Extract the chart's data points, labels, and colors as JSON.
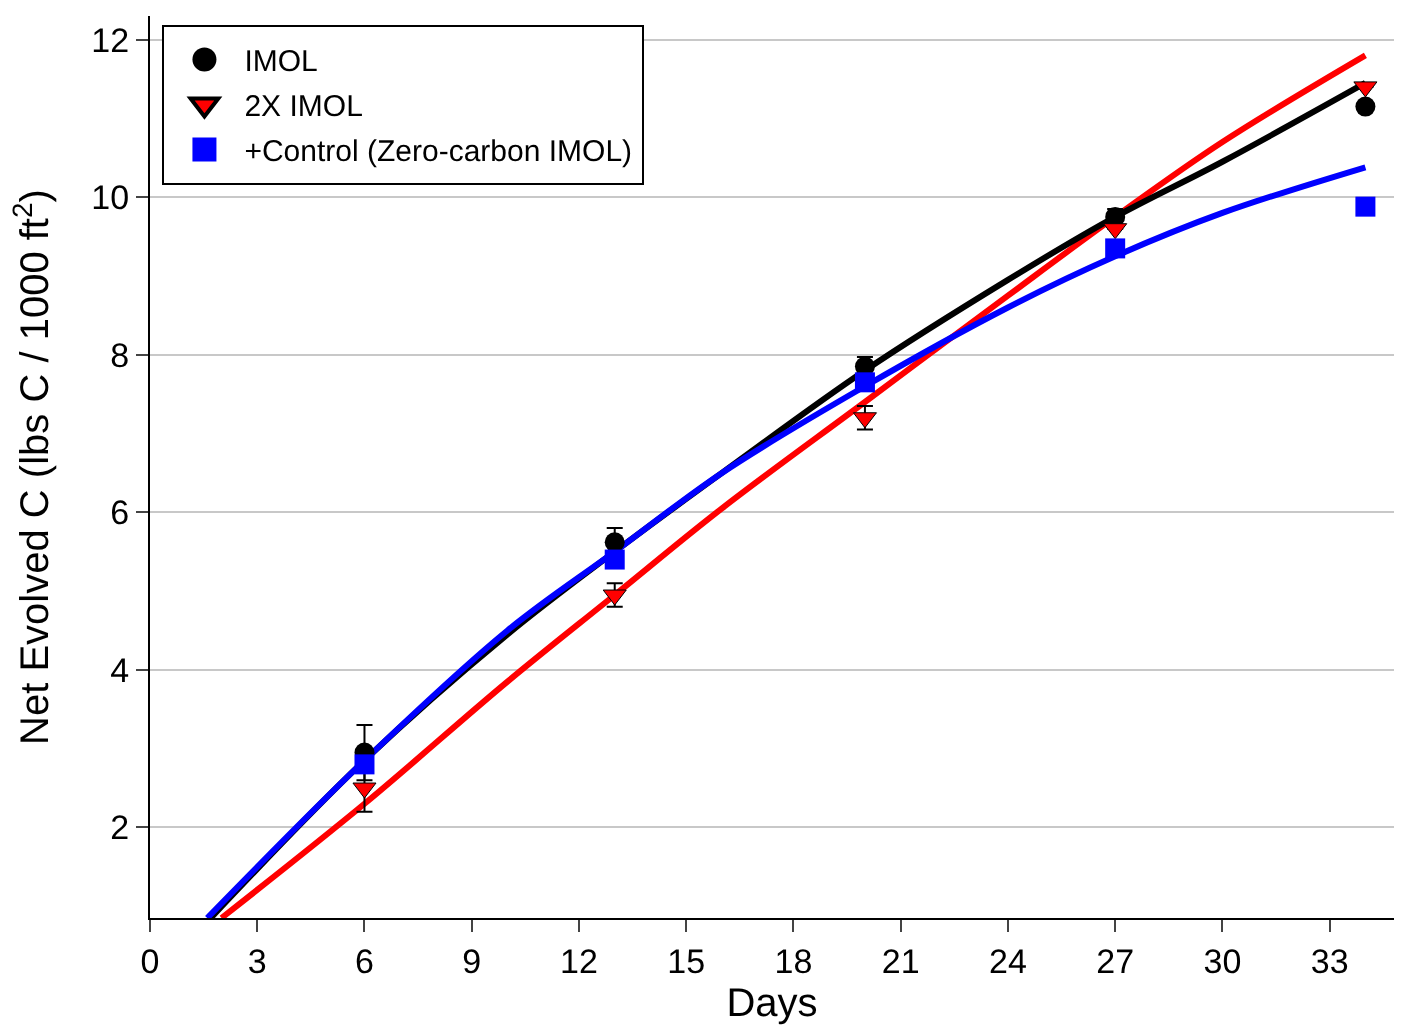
{
  "chart_data": {
    "type": "scatter",
    "xlabel": "Days",
    "ylabel": "Net Evolved C (lbs C / 1000 ft$^{2}$)",
    "xlim": [
      0,
      34.8
    ],
    "xticks": [
      0,
      3,
      6,
      9,
      12,
      15,
      18,
      21,
      24,
      27,
      30,
      33
    ],
    "ylim": [
      0.85,
      12.3
    ],
    "yticks": [
      2,
      4,
      6,
      8,
      10,
      12
    ],
    "grid": "y",
    "legend": "top left",
    "series": [
      {
        "type": "line",
        "color": "#ff0000",
        "marker": "none",
        "x": [
          2,
          6,
          10,
          13,
          16,
          20,
          24,
          27,
          30,
          34
        ],
        "values": [
          0.85,
          2.3,
          3.85,
          4.95,
          6.05,
          7.4,
          8.75,
          9.75,
          10.7,
          11.8
        ]
      },
      {
        "type": "line",
        "color": "#000000",
        "marker": "none",
        "x": [
          1.7,
          6,
          10,
          13,
          16,
          20,
          24,
          27,
          30,
          34
        ],
        "values": [
          0.85,
          2.85,
          4.45,
          5.5,
          6.5,
          7.8,
          8.95,
          9.75,
          10.45,
          11.45
        ]
      },
      {
        "type": "line",
        "color": "#0000ff",
        "marker": "none",
        "x": [
          1.6,
          6,
          10,
          13,
          16,
          20,
          24,
          27,
          30,
          34
        ],
        "values": [
          0.85,
          2.85,
          4.5,
          5.5,
          6.5,
          7.6,
          8.6,
          9.25,
          9.8,
          10.38
        ]
      },
      {
        "name": "IMOL",
        "color": "#000000",
        "marker": "circle",
        "x": [
          6,
          13,
          20,
          27,
          34
        ],
        "values": [
          2.95,
          5.62,
          7.85,
          9.75,
          11.15
        ],
        "errors": [
          0.35,
          0.18,
          0.12,
          0.1,
          null
        ]
      },
      {
        "name": "2X IMOL",
        "color": "#ff0000",
        "marker": "triangle",
        "x": [
          6,
          13,
          20,
          27,
          34
        ],
        "values": [
          2.5,
          4.95,
          7.2,
          9.6,
          11.4
        ],
        "errors": [
          0.3,
          0.15,
          0.15,
          null,
          null
        ]
      },
      {
        "name": "+Control (Zero-carbon IMOL)",
        "color": "#0000ff",
        "marker": "square",
        "x": [
          6,
          13,
          20,
          27,
          34
        ],
        "values": [
          2.8,
          5.4,
          7.65,
          9.35,
          9.88
        ],
        "errors": [
          null,
          null,
          null,
          null,
          null
        ]
      }
    ]
  }
}
